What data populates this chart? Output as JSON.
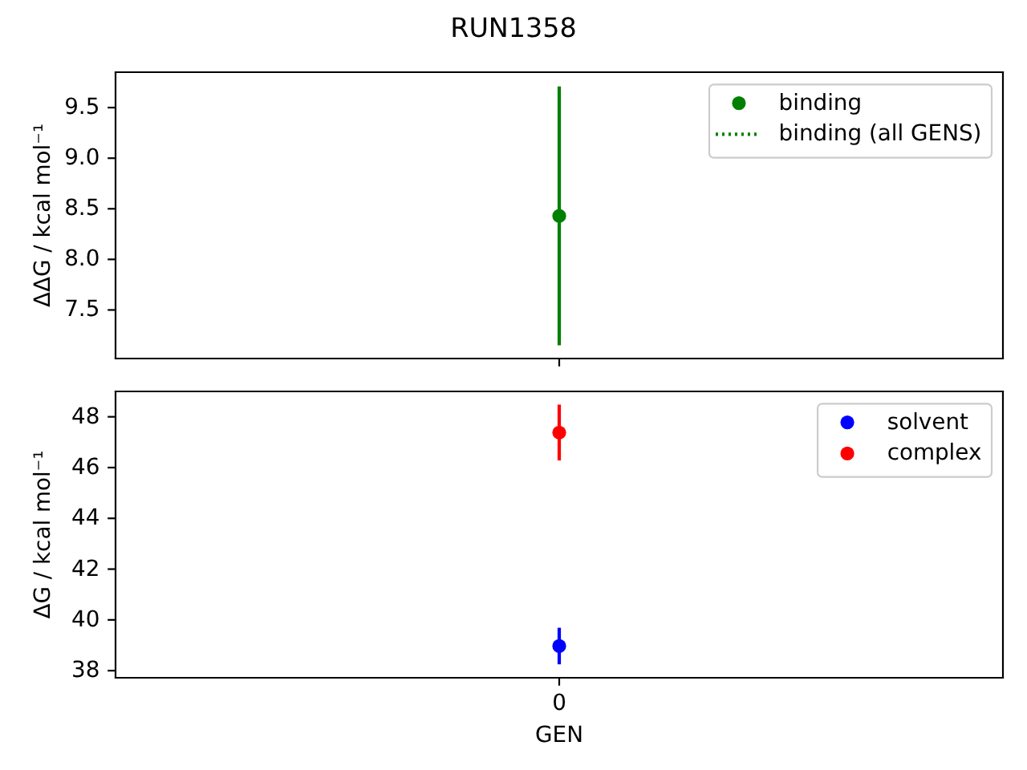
{
  "chart_data": [
    {
      "type": "scatter",
      "title": "RUN1358",
      "ylabel": "ΔΔG / kcal mol⁻¹",
      "categories": [
        null
      ],
      "ylim": [
        7.02,
        9.85
      ],
      "yticks": [
        7.5,
        {
          "value": 8,
          "label": "8.0"
        },
        8.5,
        {
          "value": 9,
          "label": "9.0"
        },
        9.5
      ],
      "tick_labels": "y",
      "legend": "top right",
      "marker": "circle",
      "series": [
        {
          "name": "binding",
          "color": "#008000",
          "values": [
            8.43
          ],
          "errors": [
            1.28
          ]
        },
        {
          "name": "binding (all GENS)",
          "type": "line",
          "color": "#008000",
          "line_style": "dotted",
          "values": [
            null
          ]
        }
      ]
    },
    {
      "type": "scatter",
      "xlabel": "GEN",
      "ylabel": "ΔG / kcal mol⁻¹",
      "categories": [
        "0"
      ],
      "ylim": [
        37.72,
        49.0
      ],
      "yticks": [
        38,
        40,
        42,
        44,
        46,
        48
      ],
      "legend": "top right",
      "marker": "circle",
      "series": [
        {
          "name": "solvent",
          "color": "#0000ff",
          "values": [
            38.97
          ],
          "errors": [
            0.72
          ]
        },
        {
          "name": "complex",
          "color": "#ff0000",
          "values": [
            47.38
          ],
          "errors": [
            1.1
          ]
        }
      ]
    }
  ]
}
